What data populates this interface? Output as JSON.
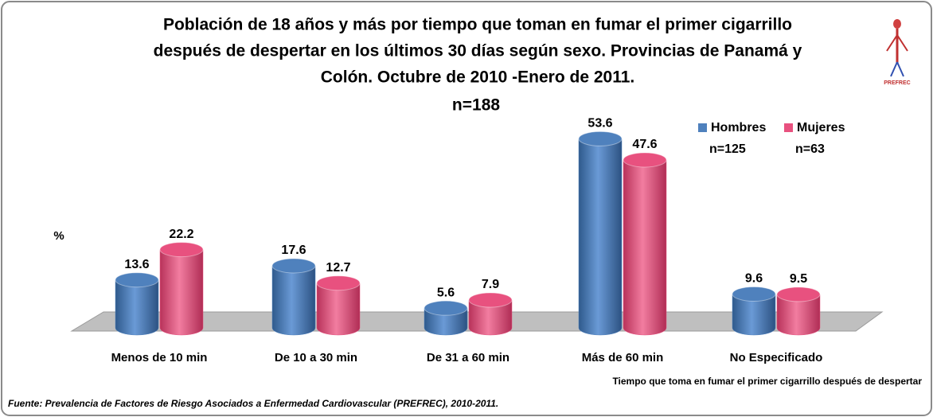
{
  "chart_data": {
    "type": "bar",
    "title": [
      "Población de 18 años y más por tiempo que toman en fumar el primer cigarrillo",
      "después de despertar en los últimos 30 días según sexo. Provincias de Panamá y",
      "Colón. Octubre de 2010 -Enero de 2011."
    ],
    "subtitle": "n=188",
    "y_label": "%",
    "x_label": "Tiempo que toma en fumar el primer cigarrillo después de despertar",
    "source": "Fuente: Prevalencia de Factores de Riesgo Asociados a Enfermedad Cardiovascular (PREFREC), 2010-2011.",
    "logo_text": "PREFREC",
    "categories": [
      "Menos de 10 min",
      "De 10 a 30 min",
      "De 31 a 60 min",
      "Más de 60 min",
      "No Especificado"
    ],
    "series": [
      {
        "name": "Hombres",
        "sample": "n=125",
        "color": "#4f81bd",
        "values": [
          13.6,
          17.6,
          5.6,
          53.6,
          9.6
        ]
      },
      {
        "name": "Mujeres",
        "sample": "n=63",
        "color": "#e8517f",
        "values": [
          22.2,
          12.7,
          7.9,
          47.6,
          9.5
        ]
      }
    ],
    "ylim": [
      0,
      60
    ],
    "legend": "top-right"
  }
}
